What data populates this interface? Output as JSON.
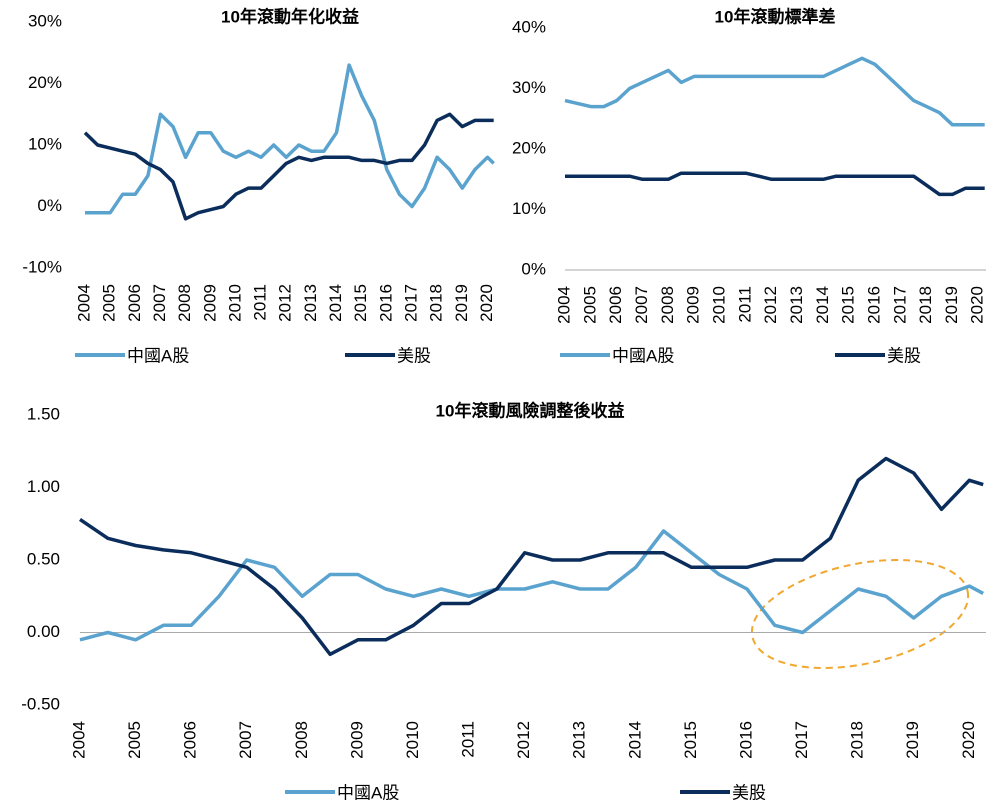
{
  "chart_data": [
    {
      "type": "line",
      "title": "10年滾動年化收益",
      "x": [
        2004,
        2004.5,
        2005,
        2005.5,
        2006,
        2006.5,
        2007,
        2007.5,
        2008,
        2008.5,
        2009,
        2009.5,
        2010,
        2010.5,
        2011,
        2011.5,
        2012,
        2012.5,
        2013,
        2013.5,
        2014,
        2014.5,
        2015,
        2015.5,
        2016,
        2016.5,
        2017,
        2017.5,
        2018,
        2018.5,
        2019,
        2019.5,
        2020,
        2020.25
      ],
      "xlim": [
        2004,
        2020.3
      ],
      "xticks": [
        2004,
        2005,
        2006,
        2007,
        2008,
        2009,
        2010,
        2011,
        2012,
        2013,
        2014,
        2015,
        2016,
        2017,
        2018,
        2019,
        2020
      ],
      "ylim": [
        -10,
        30
      ],
      "yticks": [
        {
          "value": -10,
          "label": "-10%"
        },
        {
          "value": 0,
          "label": "0%"
        },
        {
          "value": 10,
          "label": "10%"
        },
        {
          "value": 20,
          "label": "20%"
        },
        {
          "value": 30,
          "label": "30%"
        }
      ],
      "zero_line": false,
      "series": [
        {
          "name": "中國A股",
          "color": "#5ba3cf",
          "values": [
            -1,
            -1,
            -1,
            2,
            2,
            5,
            15,
            13,
            8,
            12,
            12,
            9,
            8,
            9,
            8,
            10,
            8,
            10,
            9,
            9,
            12,
            23,
            18,
            14,
            6,
            2,
            0,
            3,
            8,
            6,
            3,
            6,
            8,
            7
          ]
        },
        {
          "name": "美股",
          "color": "#0b2d5b",
          "values": [
            12,
            10,
            9.5,
            9,
            8.5,
            7,
            6,
            4,
            -2,
            -1,
            -0.5,
            0,
            2,
            3,
            3,
            5,
            7,
            8,
            7.5,
            8,
            8,
            8,
            7.5,
            7.5,
            7,
            7.5,
            7.5,
            10,
            14,
            15,
            13,
            14,
            14,
            14
          ]
        }
      ]
    },
    {
      "type": "line",
      "title": "10年滾動標準差",
      "x": [
        2004,
        2004.5,
        2005,
        2005.5,
        2006,
        2006.5,
        2007,
        2007.5,
        2008,
        2008.5,
        2009,
        2009.5,
        2010,
        2010.5,
        2011,
        2011.5,
        2012,
        2012.5,
        2013,
        2013.5,
        2014,
        2014.5,
        2015,
        2015.5,
        2016,
        2016.5,
        2017,
        2017.5,
        2018,
        2018.5,
        2019,
        2019.5,
        2020,
        2020.25
      ],
      "xlim": [
        2004,
        2020.3
      ],
      "xticks": [
        2004,
        2005,
        2006,
        2007,
        2008,
        2009,
        2010,
        2011,
        2012,
        2013,
        2014,
        2015,
        2016,
        2017,
        2018,
        2019,
        2020
      ],
      "ylim": [
        0,
        40
      ],
      "yticks": [
        {
          "value": 0,
          "label": "0%"
        },
        {
          "value": 10,
          "label": "10%"
        },
        {
          "value": 20,
          "label": "20%"
        },
        {
          "value": 30,
          "label": "30%"
        },
        {
          "value": 40,
          "label": "40%"
        }
      ],
      "zero_line": true,
      "series": [
        {
          "name": "中國A股",
          "color": "#5ba3cf",
          "values": [
            28,
            27.5,
            27,
            27,
            28,
            30,
            31,
            32,
            33,
            31,
            32,
            32,
            32,
            32,
            32,
            32,
            32,
            32,
            32,
            32,
            32,
            33,
            34,
            35,
            34,
            32,
            30,
            28,
            27,
            26,
            24,
            24,
            24,
            24
          ]
        },
        {
          "name": "美股",
          "color": "#0b2d5b",
          "values": [
            15.5,
            15.5,
            15.5,
            15.5,
            15.5,
            15.5,
            15,
            15,
            15,
            16,
            16,
            16,
            16,
            16,
            16,
            15.5,
            15,
            15,
            15,
            15,
            15,
            15.5,
            15.5,
            15.5,
            15.5,
            15.5,
            15.5,
            15.5,
            14,
            12.5,
            12.5,
            13.5,
            13.5,
            13.5
          ]
        }
      ]
    },
    {
      "type": "line",
      "title": "10年滾動風險調整後收益",
      "x": [
        2004,
        2004.5,
        2005,
        2005.5,
        2006,
        2006.5,
        2007,
        2007.5,
        2008,
        2008.5,
        2009,
        2009.5,
        2010,
        2010.5,
        2011,
        2011.5,
        2012,
        2012.5,
        2013,
        2013.5,
        2014,
        2014.5,
        2015,
        2015.5,
        2016,
        2016.5,
        2017,
        2017.5,
        2018,
        2018.5,
        2019,
        2019.5,
        2020,
        2020.25
      ],
      "xlim": [
        2004,
        2020.3
      ],
      "xticks": [
        2004,
        2005,
        2006,
        2007,
        2008,
        2009,
        2010,
        2011,
        2012,
        2013,
        2014,
        2015,
        2016,
        2017,
        2018,
        2019,
        2020
      ],
      "ylim": [
        -0.5,
        1.5
      ],
      "yticks": [
        {
          "value": -0.5,
          "label": "-0.50"
        },
        {
          "value": 0,
          "label": "0.00"
        },
        {
          "value": 0.5,
          "label": "0.50"
        },
        {
          "value": 1,
          "label": "1.00"
        },
        {
          "value": 1.5,
          "label": "1.50"
        }
      ],
      "zero_line": true,
      "series": [
        {
          "name": "中國A股",
          "color": "#5ba3cf",
          "values": [
            -0.05,
            0,
            -0.05,
            0.05,
            0.05,
            0.25,
            0.5,
            0.45,
            0.25,
            0.4,
            0.4,
            0.3,
            0.25,
            0.3,
            0.25,
            0.3,
            0.3,
            0.35,
            0.3,
            0.3,
            0.45,
            0.7,
            0.55,
            0.4,
            0.3,
            0.05,
            0,
            0.15,
            0.3,
            0.25,
            0.1,
            0.25,
            0.32,
            0.27
          ]
        },
        {
          "name": "美股",
          "color": "#0b2d5b",
          "values": [
            0.78,
            0.65,
            0.6,
            0.57,
            0.55,
            0.5,
            0.45,
            0.3,
            0.1,
            -0.15,
            -0.05,
            -0.05,
            0.05,
            0.2,
            0.2,
            0.3,
            0.55,
            0.5,
            0.5,
            0.55,
            0.55,
            0.55,
            0.45,
            0.45,
            0.45,
            0.5,
            0.5,
            0.65,
            1.05,
            1.2,
            1.1,
            0.85,
            1.05,
            1.02
          ]
        }
      ]
    }
  ]
}
